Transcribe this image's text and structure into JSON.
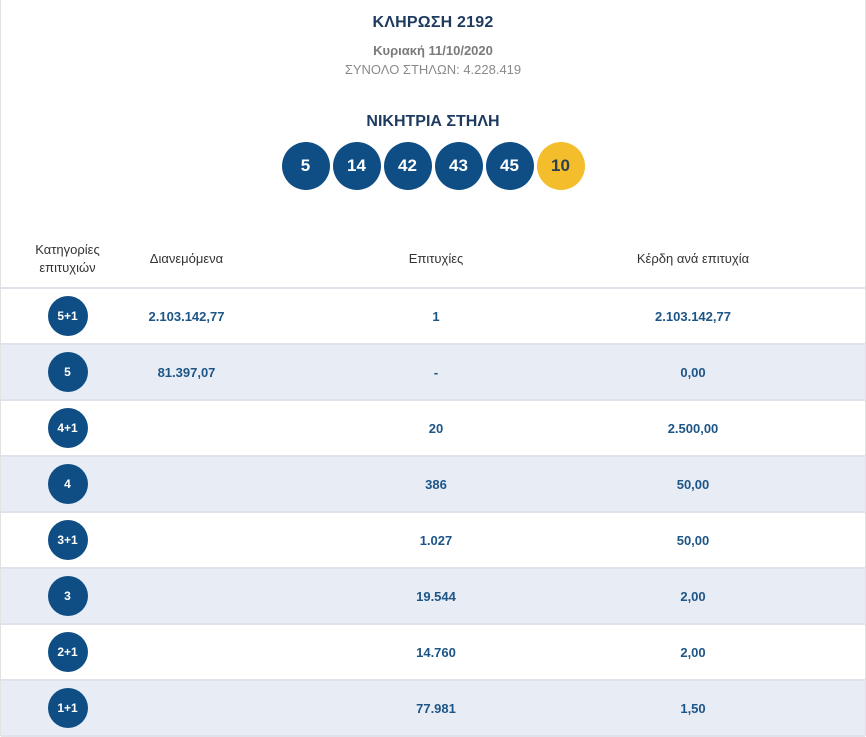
{
  "header": {
    "draw_title": "ΚΛΗΡΩΣΗ 2192",
    "draw_date": "Κυριακή 11/10/2020",
    "total_columns": "ΣΥΝΟΛΟ ΣΤΗΛΩΝ: 4.228.419"
  },
  "winning": {
    "title": "ΝΙΚΗΤΡΙΑ ΣΤΗΛΗ",
    "numbers": [
      "5",
      "14",
      "42",
      "43",
      "45"
    ],
    "bonus": "10",
    "colors": {
      "number": "#0f4e85",
      "bonus": "#f3bd2c"
    }
  },
  "table": {
    "headers": {
      "category": "Κατηγορίες επιτυχιών",
      "distributed": "Διανεμόμενα",
      "winners": "Επιτυχίες",
      "prize": "Κέρδη ανά επιτυχία"
    },
    "rows": [
      {
        "category": "5+1",
        "distributed": "2.103.142,77",
        "winners": "1",
        "prize": "2.103.142,77"
      },
      {
        "category": "5",
        "distributed": "81.397,07",
        "winners": "-",
        "prize": "0,00"
      },
      {
        "category": "4+1",
        "distributed": "",
        "winners": "20",
        "prize": "2.500,00"
      },
      {
        "category": "4",
        "distributed": "",
        "winners": "386",
        "prize": "50,00"
      },
      {
        "category": "3+1",
        "distributed": "",
        "winners": "1.027",
        "prize": "50,00"
      },
      {
        "category": "3",
        "distributed": "",
        "winners": "19.544",
        "prize": "2,00"
      },
      {
        "category": "2+1",
        "distributed": "",
        "winners": "14.760",
        "prize": "2,00"
      },
      {
        "category": "1+1",
        "distributed": "",
        "winners": "77.981",
        "prize": "1,50"
      }
    ]
  }
}
